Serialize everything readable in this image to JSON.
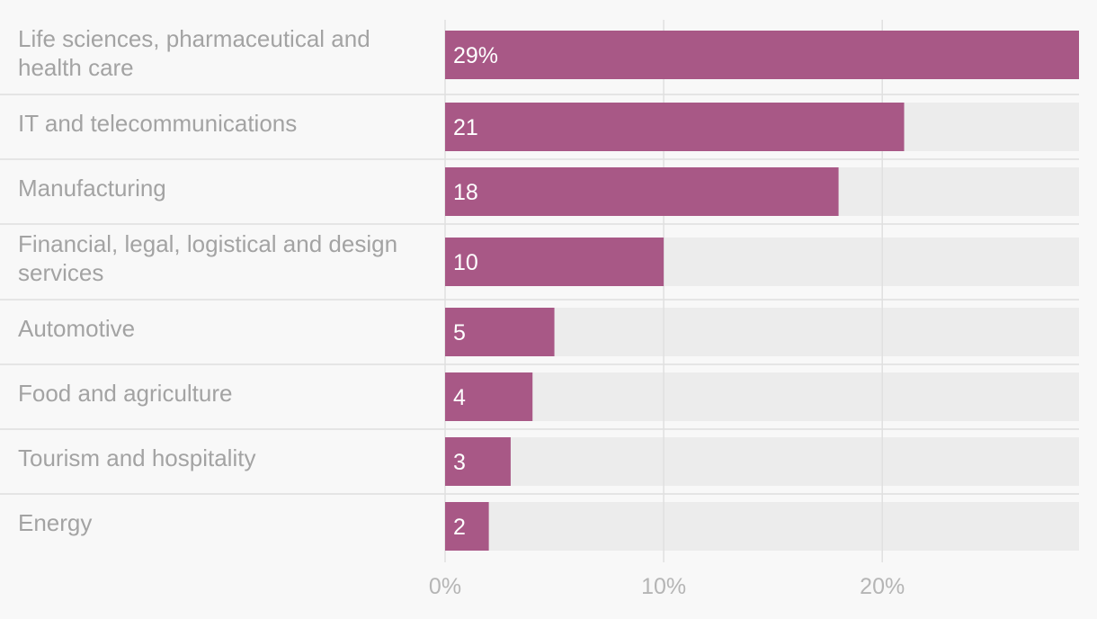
{
  "chart_data": {
    "type": "bar",
    "orientation": "horizontal",
    "categories": [
      "Life sciences, pharmaceutical and health care",
      "IT and telecommunications",
      "Manufacturing",
      "Financial, legal, logistical and design services",
      "Automotive",
      "Food and agriculture",
      "Tourism and hospitality",
      "Energy"
    ],
    "category_lines": [
      [
        "Life sciences, pharmaceutical and",
        "health care"
      ],
      [
        "IT and telecommunications"
      ],
      [
        "Manufacturing"
      ],
      [
        "Financial, legal, logistical and design",
        "services"
      ],
      [
        "Automotive"
      ],
      [
        "Food and agriculture"
      ],
      [
        "Tourism and hospitality"
      ],
      [
        "Energy"
      ]
    ],
    "values": [
      29,
      21,
      18,
      10,
      5,
      4,
      3,
      2
    ],
    "value_labels": [
      "29%",
      "21",
      "18",
      "10",
      "5",
      "4",
      "3",
      "2"
    ],
    "xlim": [
      0,
      29
    ],
    "ticks": [
      0,
      10,
      20
    ],
    "tick_labels": [
      "0%",
      "10%",
      "20%"
    ],
    "grid": true,
    "colors": {
      "bar": "#a85886",
      "track": "#ececec",
      "background": "#f8f8f8",
      "grid": "#e0e0e0",
      "separator": "#e5e5e5"
    }
  }
}
